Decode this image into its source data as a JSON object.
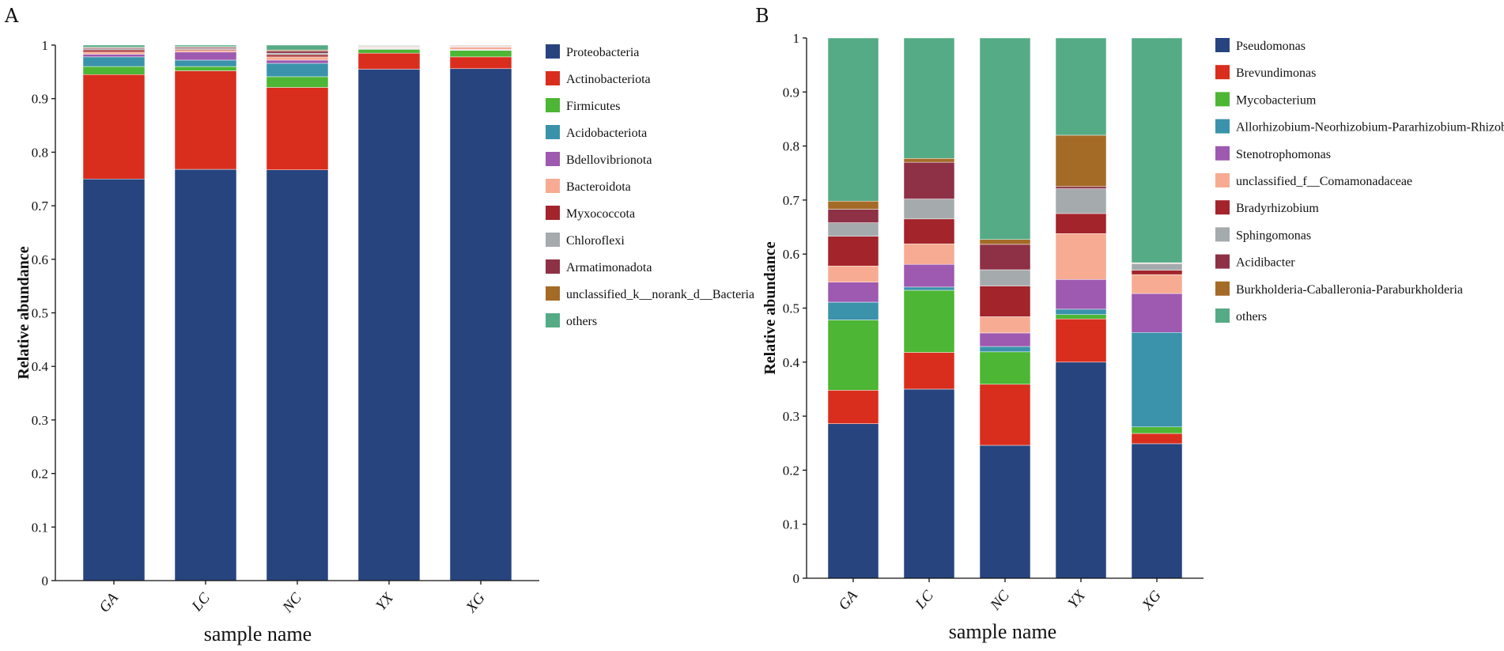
{
  "chart_data": [
    {
      "panel": "A",
      "type": "bar",
      "stacked": true,
      "title": "",
      "xlabel": "sample name",
      "ylabel": "Relative abundance",
      "ylim": [
        0,
        1
      ],
      "yticks": [
        "0",
        "0.1",
        "0.2",
        "0.3",
        "0.4",
        "0.5",
        "0.6",
        "0.7",
        "0.8",
        "0.9",
        "1"
      ],
      "categories": [
        "GA",
        "LC",
        "NC",
        "YX",
        "XG"
      ],
      "series": [
        {
          "name": "Proteobacteria",
          "color": "#27447f",
          "values": [
            0.75,
            0.768,
            0.767,
            0.955,
            0.956
          ]
        },
        {
          "name": "Actinobacteriota",
          "color": "#d92e1d",
          "values": [
            0.195,
            0.184,
            0.154,
            0.03,
            0.022
          ]
        },
        {
          "name": "Firmicutes",
          "color": "#4db634",
          "values": [
            0.015,
            0.008,
            0.02,
            0.007,
            0.012
          ]
        },
        {
          "name": "Acidobacteriota",
          "color": "#3a93aa",
          "values": [
            0.018,
            0.012,
            0.025,
            0.001,
            0.001
          ]
        },
        {
          "name": "Bdellovibrionota",
          "color": "#9e59b0",
          "values": [
            0.005,
            0.015,
            0.006,
            0.001,
            0.001
          ]
        },
        {
          "name": "Bacteroidota",
          "color": "#f6ab92",
          "values": [
            0.004,
            0.003,
            0.006,
            0.001,
            0.004
          ]
        },
        {
          "name": "Myxococcota",
          "color": "#a3242b",
          "values": [
            0.004,
            0.002,
            0.004,
            0.001,
            0.001
          ]
        },
        {
          "name": "Chloroflexi",
          "color": "#a5aaad",
          "values": [
            0.002,
            0.002,
            0.003,
            0.001,
            0.001
          ]
        },
        {
          "name": "Armatimonadota",
          "color": "#8e3146",
          "values": [
            0.002,
            0.002,
            0.004,
            0.001,
            0.001
          ]
        },
        {
          "name": "unclassified_k__norank_d__Bacteria",
          "color": "#a46b27",
          "values": [
            0.001,
            0.001,
            0.002,
            0.001,
            0.001
          ]
        },
        {
          "name": "others",
          "color": "#55ab85",
          "values": [
            0.004,
            0.003,
            0.009,
            0.001,
            0.0
          ]
        }
      ]
    },
    {
      "panel": "B",
      "type": "bar",
      "stacked": true,
      "title": "",
      "xlabel": "sample name",
      "ylabel": "Relative abundance",
      "ylim": [
        0,
        1
      ],
      "yticks": [
        "0",
        "0.1",
        "0.2",
        "0.3",
        "0.4",
        "0.5",
        "0.6",
        "0.7",
        "0.8",
        "0.9",
        "1"
      ],
      "categories": [
        "GA",
        "LC",
        "NC",
        "YX",
        "XG"
      ],
      "series": [
        {
          "name": "Pseudomonas",
          "color": "#27447f",
          "values": [
            0.286,
            0.35,
            0.246,
            0.4,
            0.249
          ]
        },
        {
          "name": "Brevundimonas",
          "color": "#d92e1d",
          "values": [
            0.062,
            0.068,
            0.113,
            0.08,
            0.019
          ]
        },
        {
          "name": "Mycobacterium",
          "color": "#4db634",
          "values": [
            0.13,
            0.115,
            0.06,
            0.008,
            0.012
          ]
        },
        {
          "name": "Allorhizobium-Neorhizobium-Pararhizobium-Rhizobium",
          "color": "#3a93aa",
          "values": [
            0.033,
            0.006,
            0.01,
            0.01,
            0.175
          ]
        },
        {
          "name": "Stenotrophomonas",
          "color": "#9e59b0",
          "values": [
            0.037,
            0.042,
            0.025,
            0.055,
            0.072
          ]
        },
        {
          "name": "unclassified_f__Comamonadaceae",
          "color": "#f6ab92",
          "values": [
            0.03,
            0.038,
            0.03,
            0.085,
            0.035
          ]
        },
        {
          "name": "Bradyrhizobium",
          "color": "#a3242b",
          "values": [
            0.055,
            0.046,
            0.057,
            0.037,
            0.008
          ]
        },
        {
          "name": "Sphingomonas",
          "color": "#a5aaad",
          "values": [
            0.025,
            0.037,
            0.03,
            0.046,
            0.012
          ]
        },
        {
          "name": "Acidibacter",
          "color": "#8e3146",
          "values": [
            0.025,
            0.068,
            0.047,
            0.004,
            0.001
          ]
        },
        {
          "name": "Burkholderia-Caballeronia-Paraburkholderia",
          "color": "#a46b27",
          "values": [
            0.015,
            0.007,
            0.009,
            0.095,
            0.001
          ]
        },
        {
          "name": "others",
          "color": "#55ab85",
          "values": [
            0.302,
            0.223,
            0.373,
            0.18,
            0.416
          ]
        }
      ]
    }
  ]
}
